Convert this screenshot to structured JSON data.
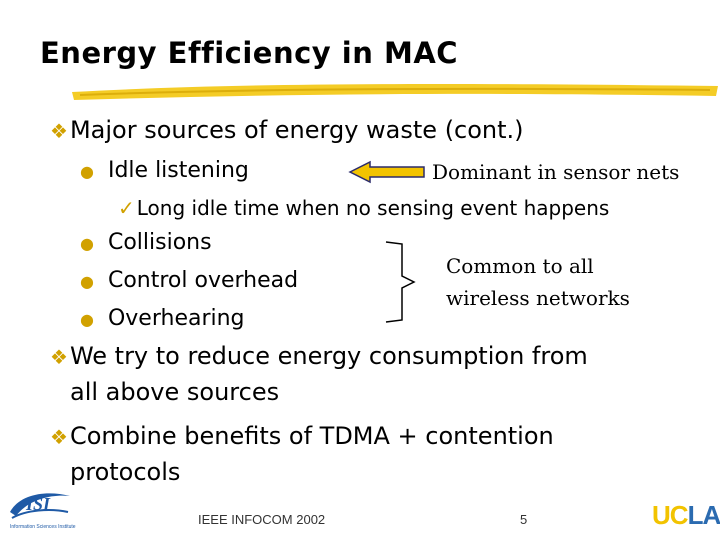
{
  "slide": {
    "title": "Energy Efficiency in MAC",
    "points": [
      {
        "text": "Major sources of energy waste (cont.)"
      },
      {
        "text": "We try to reduce energy consumption from",
        "text2": "all above sources"
      },
      {
        "text": "Combine benefits of TDMA + contention",
        "text2": "protocols"
      }
    ],
    "sub_items": [
      "Idle listening",
      "Collisions",
      "Control overhead",
      "Overhearing"
    ],
    "check_item": "Long idle time when no sensing event happens",
    "note_dominant": "Dominant in sensor nets",
    "note_common_1": "Common to all",
    "note_common_2": "wireless networks"
  },
  "footer": {
    "conference": "IEEE INFOCOM 2002",
    "page": "5",
    "left_logo": "ISI",
    "left_logo_caption": "Information Sciences Institute",
    "right_logo_a": "UC",
    "right_logo_b": "LA"
  },
  "colors": {
    "accent": "#d1a100",
    "arrow": "#f2c300",
    "ucla_blue": "#2b6bb0",
    "isi_blue": "#1f5aa6"
  }
}
